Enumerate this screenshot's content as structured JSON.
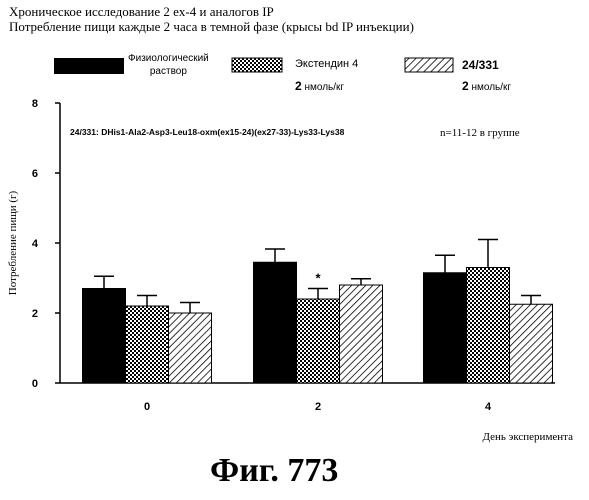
{
  "header": {
    "title_line1": "Хроническое исследование 2 ex-4 и аналогов IP",
    "title_line2": "Потребление пищи каждые 2 часа в темной фазе (крысы bd IP инъекции)"
  },
  "legend": [
    {
      "label": "Физиологический раствор",
      "label_line1": "Физиологический",
      "label_line2": "раствор",
      "dose": "",
      "pattern": "solid"
    },
    {
      "label": "Экстендин 4",
      "label_line1": "Экстендин 4",
      "label_line2": "",
      "dose_num": "2",
      "dose_unit": "нмоль/кг",
      "pattern": "checker"
    },
    {
      "label": "24/331",
      "label_line1": "24/331",
      "label_line2": "",
      "dose_num": "2",
      "dose_unit": "нмоль/кг",
      "pattern": "hatch"
    }
  ],
  "annotations": {
    "sequence": "24/331: DHis1-Ala2-Asp3-Leu18-oxm(ex15-24)(ex27-33)-Lys33-Lys38",
    "n_per_group": "n=11-12 в группе",
    "significance": "*"
  },
  "figure_label": "Фиг. 773",
  "chart_data": {
    "type": "bar",
    "categories": [
      "0",
      "2",
      "4"
    ],
    "xlabel": "День эксперимента",
    "ylabel": "Потребление пищи (г)",
    "ylim": [
      0,
      8
    ],
    "yticks": [
      0,
      2,
      4,
      6,
      8
    ],
    "grid": false,
    "legend_position": "top",
    "series": [
      {
        "name": "Физиологический раствор",
        "values": [
          2.7,
          3.45,
          3.15
        ],
        "errors": [
          0.35,
          0.38,
          0.5
        ],
        "pattern": "solid",
        "color": "#000000"
      },
      {
        "name": "Экстендин 4",
        "values": [
          2.2,
          2.4,
          3.3
        ],
        "errors": [
          0.3,
          0.3,
          0.8
        ],
        "pattern": "checker",
        "color": "#000000"
      },
      {
        "name": "24/331",
        "values": [
          2.0,
          2.8,
          2.25
        ],
        "errors": [
          0.3,
          0.18,
          0.25
        ],
        "pattern": "hatch",
        "color": "#000000"
      }
    ],
    "significance_marks": [
      {
        "category": "2",
        "series": "Экстендин 4",
        "symbol": "*"
      }
    ]
  }
}
